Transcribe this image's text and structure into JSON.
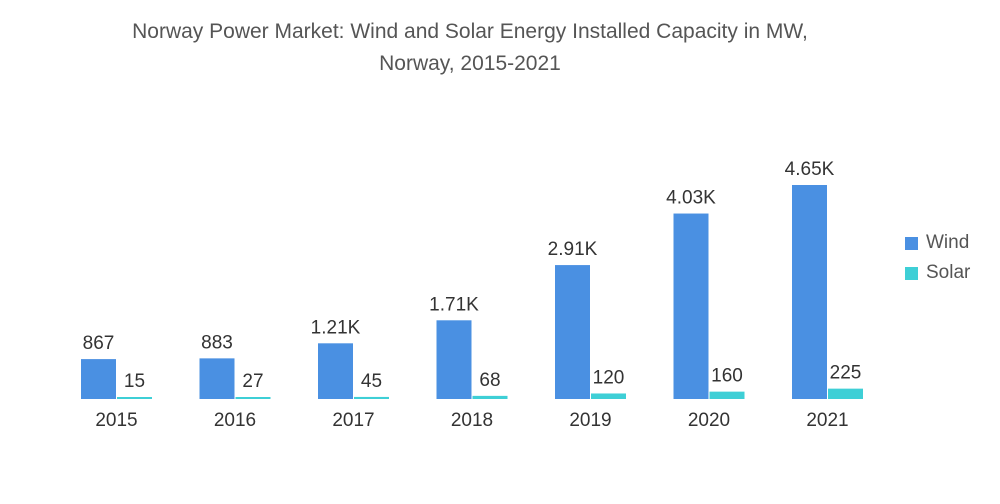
{
  "chart_data": {
    "type": "bar",
    "title_line1": "Norway Power Market: Wind and Solar Energy Installed Capacity in MW,",
    "title_line2": "Norway, 2015-2021",
    "xlabel": "",
    "ylabel": "",
    "categories": [
      "2015",
      "2016",
      "2017",
      "2018",
      "2019",
      "2020",
      "2021"
    ],
    "series": [
      {
        "name": "Wind",
        "color": "#4a90e2",
        "values": [
          867,
          883,
          1210,
          1710,
          2910,
          4030,
          4650
        ],
        "labels": [
          "867",
          "883",
          "1.21K",
          "1.71K",
          "2.91K",
          "4.03K",
          "4.65K"
        ]
      },
      {
        "name": "Solar",
        "color": "#3ecfd6",
        "values": [
          15,
          27,
          45,
          68,
          120,
          160,
          225
        ],
        "labels": [
          "15",
          "27",
          "45",
          "68",
          "120",
          "160",
          "225"
        ]
      }
    ],
    "ylim": [
      0,
      4650
    ],
    "grid": false,
    "legend_position": "right"
  }
}
